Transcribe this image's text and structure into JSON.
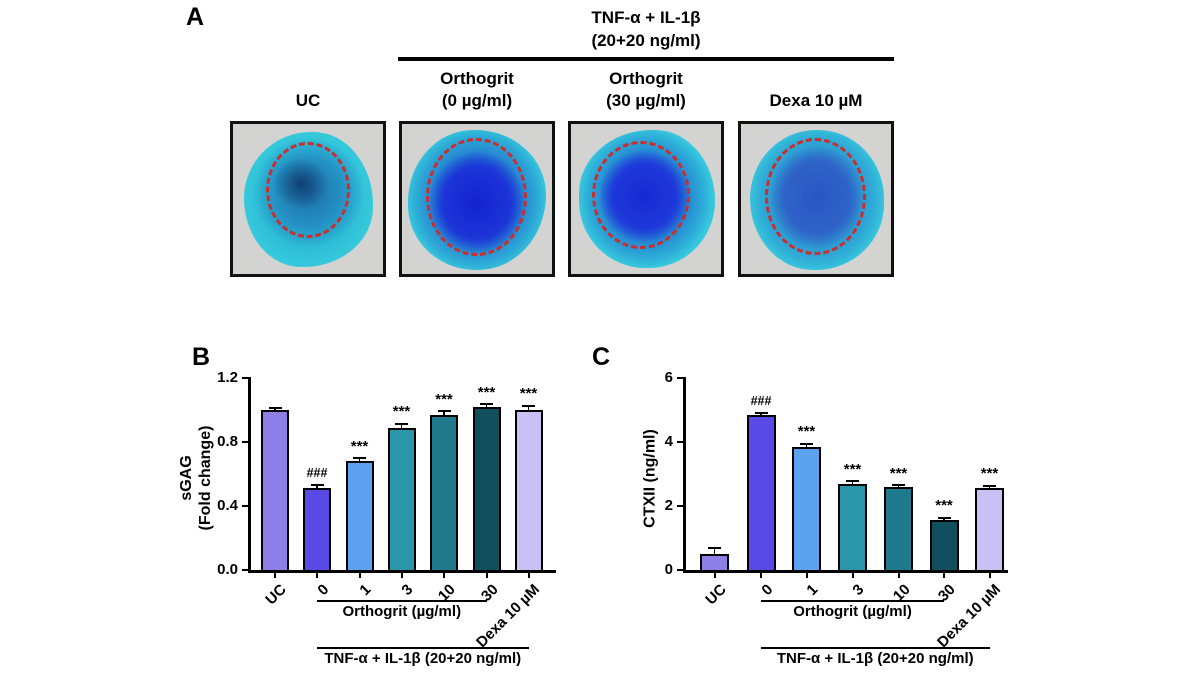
{
  "panel_a": {
    "label": "A",
    "treatment_header": [
      "TNF-α + IL-1β",
      "(20+20 ng/ml)"
    ],
    "columns": [
      {
        "title_lines": [
          "UC"
        ]
      },
      {
        "title_lines": [
          "Orthogrit",
          "(0 µg/ml)"
        ]
      },
      {
        "title_lines": [
          "Orthogrit",
          "(30 µg/ml)"
        ]
      },
      {
        "title_lines": [
          "Dexa 10 µM"
        ]
      }
    ],
    "stain_colors": {
      "outer_cyan": "#38ccde",
      "deep_blue_core": "#1c34d8",
      "uc_core": "#1d6ea6",
      "dexa_core": "#2a55c2",
      "box_background": "#d3d3d2",
      "dashed_ring": "#c92f2f"
    }
  },
  "panel_b": {
    "label": "B"
  },
  "panel_c": {
    "label": "C"
  },
  "chart_data": [
    {
      "id": "B",
      "type": "bar",
      "title": "",
      "ylabel_lines": [
        "sGAG",
        "(Fold change)"
      ],
      "xlabel": "",
      "categories": [
        "UC",
        "0",
        "1",
        "3",
        "10",
        "30",
        "Dexa 10 µM"
      ],
      "values": [
        1.0,
        0.51,
        0.68,
        0.89,
        0.97,
        1.02,
        1.0
      ],
      "errors": [
        0.012,
        0.02,
        0.015,
        0.02,
        0.018,
        0.012,
        0.022
      ],
      "annotations": [
        "",
        "###",
        "***",
        "***",
        "***",
        "***",
        "***"
      ],
      "bar_colors": [
        "#8e7ee7",
        "#5949e5",
        "#5ba1f0",
        "#2b96aa",
        "#1f7a8e",
        "#114e5e",
        "#c9c0f3"
      ],
      "ylim": [
        0,
        1.2
      ],
      "yticks": [
        "0.0",
        "0.4",
        "0.8",
        "1.2"
      ],
      "grid": false,
      "legend": "none",
      "group_lines": [
        {
          "label": "Orthogrit (µg/ml)",
          "from_category": "0",
          "to_category": "30"
        },
        {
          "label": "TNF-α + IL-1β (20+20 ng/ml)",
          "from_category": "0",
          "to_category": "Dexa 10 µM"
        }
      ]
    },
    {
      "id": "C",
      "type": "bar",
      "title": "",
      "ylabel_lines": [
        "CTXII (ng/ml)"
      ],
      "xlabel": "",
      "categories": [
        "UC",
        "0",
        "1",
        "3",
        "10",
        "30",
        "Dexa 10 µM"
      ],
      "values": [
        0.5,
        4.85,
        3.85,
        2.7,
        2.58,
        1.57,
        2.57
      ],
      "errors": [
        0.17,
        0.05,
        0.08,
        0.06,
        0.05,
        0.04,
        0.05
      ],
      "annotations": [
        "",
        "###",
        "***",
        "***",
        "***",
        "***",
        "***"
      ],
      "bar_colors": [
        "#8e7ee7",
        "#5949e5",
        "#5ba1f0",
        "#2b96aa",
        "#1f7a8e",
        "#114e5e",
        "#c9c0f3"
      ],
      "ylim": [
        0,
        6
      ],
      "yticks": [
        "0",
        "2",
        "4",
        "6"
      ],
      "grid": false,
      "legend": "none",
      "group_lines": [
        {
          "label": "Orthogrit (µg/ml)",
          "from_category": "0",
          "to_category": "30"
        },
        {
          "label": "TNF-α + IL-1β (20+20 ng/ml)",
          "from_category": "0",
          "to_category": "Dexa 10 µM"
        }
      ]
    }
  ]
}
